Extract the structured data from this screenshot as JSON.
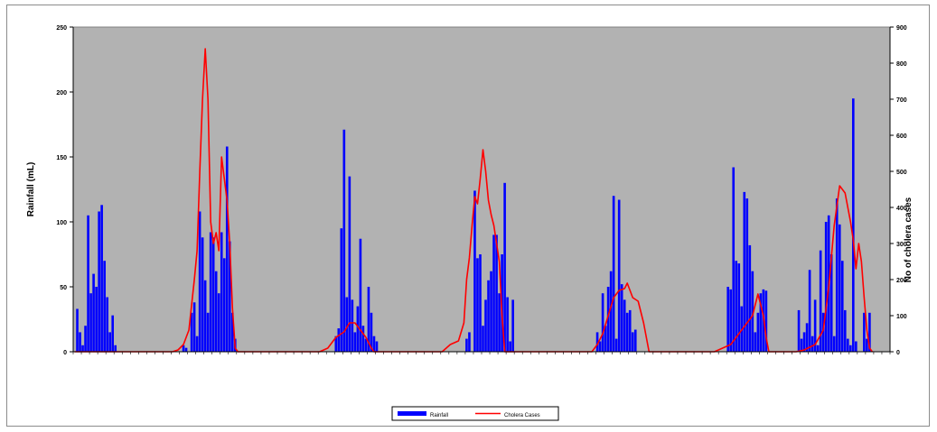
{
  "chart_data": {
    "type": "bar+line",
    "title": "",
    "ylabel_left": "Rainfall (mL)",
    "ylabel_right": "No of cholera cases",
    "ylim_left": [
      0,
      250
    ],
    "yticks_left": [
      "0",
      "50",
      "100",
      "150",
      "200",
      "250"
    ],
    "ylim_right": [
      0,
      900
    ],
    "yticks_right": [
      "0",
      "100",
      "200",
      "300",
      "400",
      "500",
      "600",
      "700",
      "800",
      "900"
    ],
    "n_points": 300,
    "grid": false,
    "plot_background": "#b2b2b2",
    "legend_position": "bottom-center",
    "series": [
      {
        "name": "Rainfall",
        "type": "bar",
        "axis": "left",
        "color": "#0000ff",
        "points": [
          [
            1,
            33
          ],
          [
            2,
            15
          ],
          [
            3,
            5
          ],
          [
            4,
            20
          ],
          [
            5,
            105
          ],
          [
            6,
            45
          ],
          [
            7,
            60
          ],
          [
            8,
            50
          ],
          [
            9,
            108
          ],
          [
            10,
            113
          ],
          [
            11,
            70
          ],
          [
            12,
            42
          ],
          [
            13,
            15
          ],
          [
            14,
            28
          ],
          [
            15,
            5
          ],
          [
            40,
            5
          ],
          [
            41,
            3
          ],
          [
            43,
            30
          ],
          [
            44,
            38
          ],
          [
            45,
            12
          ],
          [
            46,
            108
          ],
          [
            47,
            88
          ],
          [
            48,
            55
          ],
          [
            49,
            30
          ],
          [
            50,
            92
          ],
          [
            51,
            88
          ],
          [
            52,
            62
          ],
          [
            53,
            45
          ],
          [
            54,
            92
          ],
          [
            55,
            72
          ],
          [
            56,
            158
          ],
          [
            57,
            85
          ],
          [
            58,
            30
          ],
          [
            59,
            10
          ],
          [
            96,
            12
          ],
          [
            97,
            18
          ],
          [
            98,
            95
          ],
          [
            99,
            171
          ],
          [
            100,
            42
          ],
          [
            101,
            135
          ],
          [
            102,
            40
          ],
          [
            103,
            15
          ],
          [
            104,
            35
          ],
          [
            105,
            87
          ],
          [
            106,
            20
          ],
          [
            107,
            10
          ],
          [
            108,
            50
          ],
          [
            109,
            30
          ],
          [
            110,
            12
          ],
          [
            111,
            8
          ],
          [
            144,
            10
          ],
          [
            145,
            15
          ],
          [
            147,
            124
          ],
          [
            148,
            72
          ],
          [
            149,
            75
          ],
          [
            150,
            20
          ],
          [
            151,
            40
          ],
          [
            152,
            55
          ],
          [
            153,
            62
          ],
          [
            154,
            90
          ],
          [
            155,
            90
          ],
          [
            156,
            45
          ],
          [
            157,
            75
          ],
          [
            158,
            130
          ],
          [
            159,
            42
          ],
          [
            160,
            8
          ],
          [
            161,
            40
          ],
          [
            192,
            15
          ],
          [
            193,
            8
          ],
          [
            194,
            45
          ],
          [
            195,
            20
          ],
          [
            196,
            50
          ],
          [
            197,
            62
          ],
          [
            198,
            120
          ],
          [
            199,
            10
          ],
          [
            200,
            117
          ],
          [
            201,
            52
          ],
          [
            202,
            40
          ],
          [
            203,
            30
          ],
          [
            204,
            32
          ],
          [
            205,
            15
          ],
          [
            206,
            17
          ],
          [
            240,
            50
          ],
          [
            241,
            48
          ],
          [
            242,
            142
          ],
          [
            243,
            70
          ],
          [
            244,
            68
          ],
          [
            245,
            35
          ],
          [
            246,
            123
          ],
          [
            247,
            118
          ],
          [
            248,
            82
          ],
          [
            249,
            62
          ],
          [
            250,
            15
          ],
          [
            251,
            30
          ],
          [
            252,
            45
          ],
          [
            253,
            48
          ],
          [
            254,
            47
          ],
          [
            266,
            32
          ],
          [
            267,
            10
          ],
          [
            268,
            15
          ],
          [
            269,
            22
          ],
          [
            270,
            63
          ],
          [
            271,
            12
          ],
          [
            272,
            40
          ],
          [
            273,
            5
          ],
          [
            274,
            78
          ],
          [
            275,
            30
          ],
          [
            276,
            100
          ],
          [
            277,
            105
          ],
          [
            278,
            75
          ],
          [
            279,
            12
          ],
          [
            280,
            118
          ],
          [
            281,
            98
          ],
          [
            282,
            70
          ],
          [
            283,
            32
          ],
          [
            284,
            10
          ],
          [
            285,
            5
          ],
          [
            286,
            195
          ],
          [
            287,
            8
          ],
          [
            290,
            30
          ],
          [
            291,
            10
          ],
          [
            292,
            30
          ],
          [
            320,
            40
          ],
          [
            321,
            88
          ],
          [
            322,
            124
          ],
          [
            323,
            12
          ]
        ]
      },
      {
        "name": "Cholera Cases",
        "type": "line",
        "axis": "right",
        "color": "#ff0000",
        "points": [
          [
            0,
            0
          ],
          [
            36,
            0
          ],
          [
            38,
            5
          ],
          [
            40,
            20
          ],
          [
            42,
            60
          ],
          [
            44,
            200
          ],
          [
            45,
            280
          ],
          [
            46,
            500
          ],
          [
            47,
            700
          ],
          [
            48,
            840
          ],
          [
            49,
            700
          ],
          [
            50,
            360
          ],
          [
            51,
            300
          ],
          [
            52,
            330
          ],
          [
            53,
            280
          ],
          [
            54,
            540
          ],
          [
            55,
            480
          ],
          [
            56,
            420
          ],
          [
            57,
            300
          ],
          [
            58,
            120
          ],
          [
            59,
            10
          ],
          [
            60,
            0
          ],
          [
            90,
            0
          ],
          [
            93,
            10
          ],
          [
            96,
            40
          ],
          [
            99,
            55
          ],
          [
            101,
            80
          ],
          [
            103,
            80
          ],
          [
            105,
            60
          ],
          [
            107,
            40
          ],
          [
            109,
            10
          ],
          [
            110,
            0
          ],
          [
            125,
            0
          ],
          [
            135,
            0
          ],
          [
            138,
            20
          ],
          [
            141,
            30
          ],
          [
            143,
            80
          ],
          [
            144,
            200
          ],
          [
            145,
            260
          ],
          [
            146,
            350
          ],
          [
            147,
            430
          ],
          [
            148,
            410
          ],
          [
            149,
            480
          ],
          [
            150,
            560
          ],
          [
            151,
            500
          ],
          [
            152,
            420
          ],
          [
            153,
            380
          ],
          [
            154,
            350
          ],
          [
            155,
            300
          ],
          [
            156,
            250
          ],
          [
            157,
            100
          ],
          [
            158,
            0
          ],
          [
            180,
            0
          ],
          [
            190,
            0
          ],
          [
            192,
            20
          ],
          [
            194,
            50
          ],
          [
            196,
            100
          ],
          [
            198,
            150
          ],
          [
            200,
            170
          ],
          [
            202,
            175
          ],
          [
            203,
            190
          ],
          [
            205,
            150
          ],
          [
            207,
            140
          ],
          [
            209,
            80
          ],
          [
            211,
            0
          ],
          [
            235,
            0
          ],
          [
            241,
            20
          ],
          [
            243,
            40
          ],
          [
            245,
            60
          ],
          [
            247,
            80
          ],
          [
            249,
            100
          ],
          [
            251,
            160
          ],
          [
            253,
            100
          ],
          [
            254,
            40
          ],
          [
            255,
            0
          ],
          [
            265,
            0
          ],
          [
            268,
            5
          ],
          [
            272,
            20
          ],
          [
            275,
            60
          ],
          [
            277,
            180
          ],
          [
            279,
            350
          ],
          [
            281,
            460
          ],
          [
            283,
            440
          ],
          [
            285,
            360
          ],
          [
            286,
            310
          ],
          [
            287,
            230
          ],
          [
            288,
            300
          ],
          [
            289,
            250
          ],
          [
            290,
            150
          ],
          [
            291,
            60
          ],
          [
            292,
            10
          ],
          [
            293,
            0
          ],
          [
            310,
            0
          ],
          [
            320,
            0
          ],
          [
            324,
            0
          ],
          [
            326,
            30
          ],
          [
            328,
            100
          ],
          [
            329,
            150
          ],
          [
            330,
            270
          ]
        ]
      }
    ]
  }
}
